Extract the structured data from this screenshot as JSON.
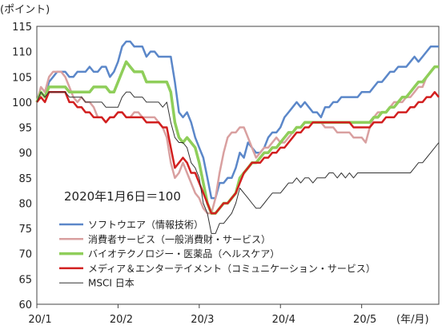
{
  "chart_data": {
    "type": "line",
    "yunit_label": "(ポイント)",
    "xunit_label": "(年/月)",
    "annotation": "2020年1月6日＝100",
    "ylim": [
      60,
      115
    ],
    "yticks": [
      60,
      65,
      70,
      75,
      80,
      85,
      90,
      95,
      100,
      105,
      110,
      115
    ],
    "xlim": [
      0,
      99
    ],
    "xticks": [
      {
        "label": "20/1",
        "x": 0
      },
      {
        "label": "20/2",
        "x": 20
      },
      {
        "label": "20/3",
        "x": 40
      },
      {
        "label": "20/4",
        "x": 60
      },
      {
        "label": "20/5",
        "x": 80
      }
    ],
    "grid": false,
    "legend": "bottom-left",
    "x": [
      0,
      1,
      2,
      3,
      4,
      5,
      6,
      7,
      8,
      9,
      10,
      11,
      12,
      13,
      14,
      15,
      16,
      17,
      18,
      19,
      20,
      21,
      22,
      23,
      24,
      25,
      26,
      27,
      28,
      29,
      30,
      31,
      32,
      33,
      34,
      35,
      36,
      37,
      38,
      39,
      40,
      41,
      42,
      43,
      44,
      45,
      46,
      47,
      48,
      49,
      50,
      51,
      52,
      53,
      54,
      55,
      56,
      57,
      58,
      59,
      60,
      61,
      62,
      63,
      64,
      65,
      66,
      67,
      68,
      69,
      70,
      71,
      72,
      73,
      74,
      75,
      76,
      77,
      78,
      79,
      80,
      81,
      82,
      83,
      84,
      85,
      86,
      87,
      88,
      89,
      90,
      91,
      92,
      93,
      94,
      95,
      96,
      97,
      98,
      99
    ],
    "series": [
      {
        "name": "ソフトウエア（情報技術）",
        "color": "#5b87c9",
        "width": 2.5,
        "values": [
          100,
          102,
          101,
          104,
          105,
          106,
          106,
          106,
          105,
          105,
          106,
          106,
          106,
          107,
          106,
          106,
          107,
          107,
          105,
          106,
          108,
          111,
          112,
          112,
          111,
          111,
          111,
          109,
          110,
          110,
          109,
          109,
          109,
          109,
          104,
          98,
          97,
          98,
          96,
          93,
          91,
          89,
          85,
          81,
          81,
          84,
          84,
          85,
          85,
          87,
          90,
          89,
          92,
          91,
          90,
          90,
          91,
          93,
          94,
          94,
          95,
          97,
          98,
          99,
          100,
          99,
          100,
          99,
          98,
          98,
          97,
          99,
          99,
          100,
          100,
          101,
          101,
          101,
          101,
          101,
          102,
          102,
          102,
          103,
          104,
          104,
          105,
          106,
          106,
          107,
          107,
          107,
          108,
          109,
          108,
          109,
          110,
          111,
          111,
          111
        ]
      },
      {
        "name": "消費者サービス（一般消費財・サービス）",
        "color": "#d9a0a0",
        "width": 2.5,
        "values": [
          100,
          103,
          102,
          105,
          106,
          106,
          106,
          105,
          103,
          101,
          100,
          101,
          100,
          100,
          99,
          97,
          97,
          96,
          97,
          97,
          98,
          98,
          97,
          97,
          98,
          98,
          97,
          97,
          97,
          97,
          96,
          95,
          93,
          88,
          85,
          86,
          88,
          86,
          84,
          82,
          81,
          79,
          78,
          78,
          81,
          86,
          90,
          93,
          94,
          94,
          95,
          95,
          93,
          91,
          89,
          90,
          91,
          91,
          92,
          93,
          92,
          92,
          93,
          94,
          95,
          95,
          96,
          96,
          96,
          96,
          96,
          95,
          95,
          95,
          94,
          94,
          94,
          94,
          93,
          93,
          93,
          92,
          95,
          97,
          98,
          98,
          98,
          99,
          100,
          100,
          100,
          101,
          101,
          102,
          103,
          103,
          105,
          106,
          107,
          107
        ]
      },
      {
        "name": "バイオテクノロジー・医薬品（ヘルスケア）",
        "color": "#8fce5a",
        "width": 3.5,
        "values": [
          100,
          102,
          101,
          103,
          103,
          103,
          103,
          103,
          102,
          102,
          102,
          102,
          102,
          102,
          103,
          103,
          103,
          103,
          102,
          102,
          104,
          106,
          108,
          107,
          106,
          106,
          106,
          104,
          104,
          104,
          104,
          104,
          104,
          102,
          96,
          93,
          92,
          93,
          92,
          91,
          88,
          84,
          80,
          78,
          78,
          79,
          80,
          80,
          81,
          82,
          85,
          86,
          87,
          88,
          88,
          89,
          90,
          90,
          91,
          91,
          92,
          93,
          94,
          94,
          95,
          95,
          96,
          96,
          96,
          96,
          96,
          96,
          96,
          96,
          96,
          96,
          96,
          96,
          96,
          96,
          96,
          96,
          96,
          97,
          97,
          98,
          98,
          99,
          99,
          100,
          101,
          101,
          102,
          103,
          104,
          104,
          105,
          106,
          107,
          107
        ]
      },
      {
        "name": "メディア＆エンターテイメント（コミュニケーション・サービス）",
        "color": "#d21f1f",
        "width": 2.5,
        "values": [
          100,
          101,
          100,
          102,
          102,
          102,
          102,
          102,
          100,
          100,
          99,
          99,
          98,
          98,
          97,
          97,
          97,
          96,
          97,
          97,
          98,
          98,
          97,
          97,
          97,
          97,
          97,
          96,
          96,
          96,
          96,
          95,
          95,
          91,
          87,
          88,
          89,
          88,
          86,
          86,
          84,
          82,
          80,
          78,
          78,
          79,
          80,
          80,
          81,
          82,
          84,
          86,
          87,
          88,
          88,
          88,
          89,
          89,
          90,
          90,
          91,
          91,
          92,
          93,
          94,
          94,
          95,
          95,
          96,
          96,
          96,
          96,
          96,
          96,
          96,
          96,
          96,
          96,
          95,
          95,
          95,
          95,
          95,
          96,
          96,
          96,
          97,
          97,
          97,
          98,
          98,
          98,
          99,
          99,
          100,
          100,
          101,
          101,
          102,
          101
        ]
      },
      {
        "name": "MSCI 日本",
        "color": "#333333",
        "width": 1,
        "values": [
          100,
          102,
          101,
          102,
          102,
          102,
          102,
          102,
          101,
          101,
          101,
          101,
          100,
          100,
          100,
          100,
          100,
          99,
          99,
          99,
          99,
          101,
          102,
          102,
          101,
          101,
          101,
          100,
          100,
          100,
          100,
          99,
          100,
          96,
          93,
          92,
          92,
          91,
          88,
          87,
          85,
          80,
          78,
          74,
          74,
          76,
          76,
          77,
          78,
          80,
          83,
          82,
          81,
          80,
          79,
          79,
          80,
          81,
          82,
          82,
          82,
          83,
          84,
          84,
          85,
          84,
          85,
          85,
          84,
          85,
          85,
          85,
          86,
          86,
          85,
          86,
          85,
          86,
          85,
          86,
          86,
          86,
          86,
          86,
          86,
          86,
          86,
          86,
          86,
          86,
          86,
          86,
          86,
          87,
          88,
          88,
          89,
          90,
          91,
          92
        ]
      }
    ]
  }
}
